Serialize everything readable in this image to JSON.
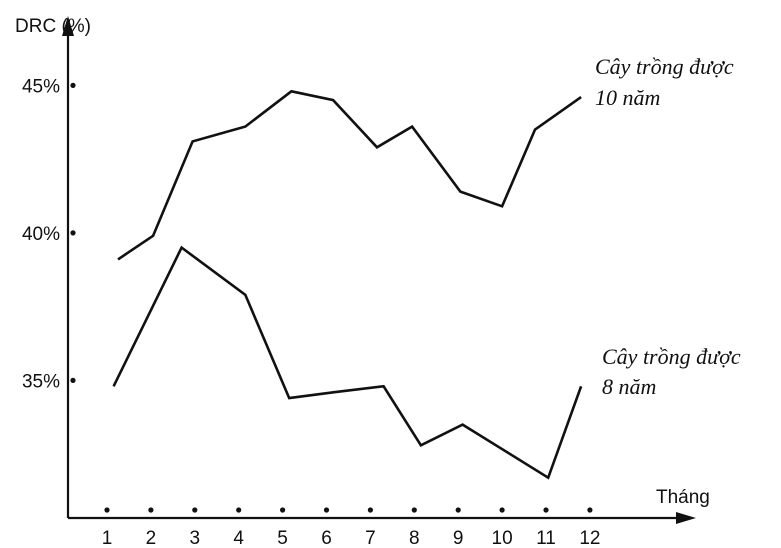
{
  "chart_data": {
    "type": "line",
    "ylabel": "DRC (%)",
    "xlabel": "Tháng",
    "x": [
      1,
      2,
      3,
      4,
      5,
      6,
      7,
      8,
      9,
      10,
      11,
      12
    ],
    "x_tick_labels": [
      "1",
      "2",
      "3",
      "4",
      "5",
      "6",
      "7",
      "8",
      "9",
      "10",
      "11",
      "12"
    ],
    "y_tick_labels": [
      "45%",
      "40%",
      "35%"
    ],
    "y_ticks": [
      45,
      40,
      35
    ],
    "ylim": [
      30.3,
      47.3
    ],
    "grid": false,
    "legend": "inline labels at right end of each line",
    "series": [
      {
        "name_lines": [
          "Cây trồng được",
          "10 năm"
        ],
        "points": [
          [
            1.25,
            39.1
          ],
          [
            2.05,
            39.9
          ],
          [
            2.95,
            43.1
          ],
          [
            4.15,
            43.6
          ],
          [
            5.2,
            44.8
          ],
          [
            6.15,
            44.5
          ],
          [
            7.15,
            42.9
          ],
          [
            7.95,
            43.6
          ],
          [
            9.05,
            41.4
          ],
          [
            10.0,
            40.9
          ],
          [
            10.75,
            43.5
          ],
          [
            11.8,
            44.6
          ]
        ]
      },
      {
        "name_lines": [
          "Cây trồng được",
          "8 năm"
        ],
        "points": [
          [
            1.15,
            34.8
          ],
          [
            2.7,
            39.5
          ],
          [
            4.15,
            37.9
          ],
          [
            5.15,
            34.4
          ],
          [
            6.2,
            34.6
          ],
          [
            7.3,
            34.8
          ],
          [
            8.15,
            32.8
          ],
          [
            9.1,
            33.5
          ],
          [
            11.05,
            31.7
          ],
          [
            11.8,
            34.8
          ]
        ]
      }
    ],
    "colors": {
      "line": "#111111",
      "text": "#111111",
      "background": "#ffffff"
    }
  }
}
